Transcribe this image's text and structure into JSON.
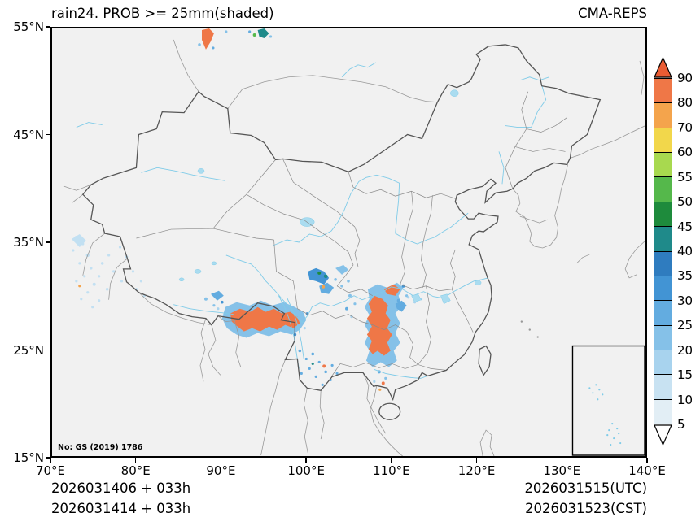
{
  "header": {
    "title_left": "rain24. PROB >= 25mm(shaded)",
    "title_right": "CMA-REPS"
  },
  "map": {
    "note": "No: GS (2019) 1786"
  },
  "axes": {
    "x_ticks": [
      "70°E",
      "80°E",
      "90°E",
      "100°E",
      "110°E",
      "120°E",
      "130°E",
      "140°E"
    ],
    "y_ticks": [
      "55°N",
      "45°N",
      "35°N",
      "25°N",
      "15°N"
    ]
  },
  "colorbar": {
    "labels_top_to_bottom": [
      "90",
      "80",
      "70",
      "60",
      "55",
      "50",
      "45",
      "40",
      "35",
      "30",
      "25",
      "20",
      "15",
      "10",
      "5"
    ],
    "cell_colors_top_to_bottom": [
      "#ef7747",
      "#f4a44c",
      "#f2d74b",
      "#a8d94f",
      "#55b84b",
      "#1e8b3c",
      "#1f8a8a",
      "#2f7cbf",
      "#4294d4",
      "#63ace0",
      "#85c1e8",
      "#a8d3ee",
      "#c8e2f2",
      "#e2eef5"
    ],
    "arrow_top_color": "#ea5c33",
    "arrow_bottom_color": "#ffffff"
  },
  "footer": {
    "init_utc": "2026031406 + 033h",
    "init_cst": "2026031414 + 033h",
    "valid_utc": "2026031515(UTC)",
    "valid_cst": "2026031523(CST)"
  },
  "chart_data": {
    "type": "heatmap",
    "title": "rain24. PROB >= 25mm(shaded)",
    "model": "CMA-REPS",
    "variable": "probability of 24h rainfall >= 25mm",
    "units": "%",
    "shading_levels": [
      5,
      10,
      15,
      20,
      25,
      30,
      35,
      40,
      45,
      50,
      55,
      60,
      70,
      80,
      90
    ],
    "x_axis": {
      "ticks": [
        "70°E",
        "80°E",
        "90°E",
        "100°E",
        "110°E",
        "120°E",
        "130°E",
        "140°E"
      ],
      "range_deg_e": [
        70,
        140
      ]
    },
    "y_axis": {
      "ticks": [
        "55°N",
        "45°N",
        "35°N",
        "25°N",
        "15°N"
      ],
      "range_deg_n": [
        15,
        55
      ]
    },
    "high_prob_regions": [
      {
        "region": "southeast Tibet to northwest Yunnan",
        "approx_extent": "92-100E, 26-30N",
        "peak_prob": "80-90+"
      },
      {
        "region": "Guizhou / Chongqing / north Guangxi",
        "approx_extent": "105-110E, 24-30N",
        "peak_prob": "80-90+"
      },
      {
        "region": "west Sichuan basin rim",
        "approx_extent": "100-104E, 29-32N",
        "peak_prob": "30-50"
      },
      {
        "region": "far-north patch",
        "approx_extent": "87-94E, 53-55N",
        "peak_prob": "40-90"
      },
      {
        "region": "western Tibet border",
        "approx_extent": "78-83E, 29-35N",
        "peak_prob": "5-20"
      },
      {
        "region": "scattered Yunnan",
        "approx_extent": "98-105E, 22-26N",
        "peak_prob": "5-40"
      }
    ]
  }
}
